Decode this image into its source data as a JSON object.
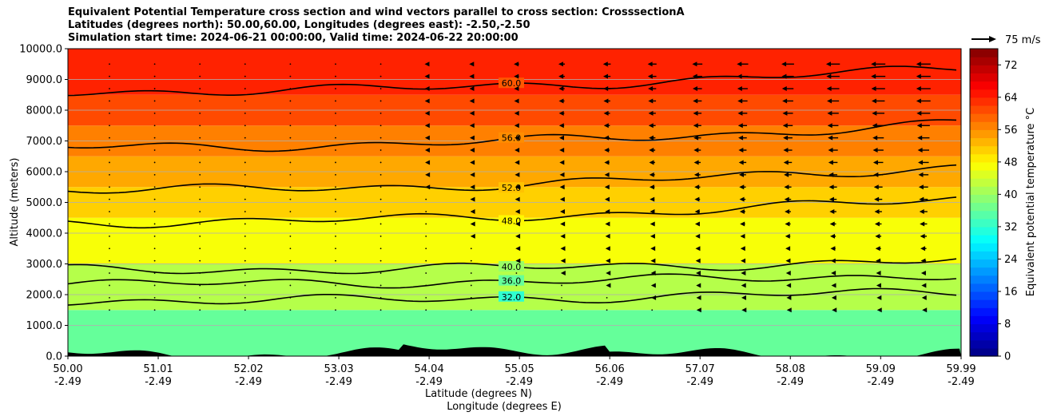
{
  "chart_data": {
    "type": "heatmap",
    "title_lines": [
      "Equivalent Potential Temperature cross section and wind vectors parallel to cross section: CrosssectionA",
      "Latitudes (degrees north): 50.00,60.00, Longitudes (degrees east): -2.50,-2.50",
      "Simulation start time: 2024-06-21 00:00:00, Valid time: 2024-06-22 20:00:00"
    ],
    "ylabel": "Altitude (meters)",
    "xlabel_lines": [
      "Latitude (degrees N)",
      "Longitude (degrees E)"
    ],
    "ylim": [
      0,
      10000
    ],
    "xlim": [
      50.0,
      59.99
    ],
    "yticks": [
      {
        "value": 0,
        "label": "0.0"
      },
      {
        "value": 1000,
        "label": "1000.0"
      },
      {
        "value": 2000,
        "label": "2000.0"
      },
      {
        "value": 3000,
        "label": "3000.0"
      },
      {
        "value": 4000,
        "label": "4000.0"
      },
      {
        "value": 5000,
        "label": "5000.0"
      },
      {
        "value": 6000,
        "label": "6000.0"
      },
      {
        "value": 7000,
        "label": "7000.0"
      },
      {
        "value": 8000,
        "label": "8000.0"
      },
      {
        "value": 9000,
        "label": "9000.0"
      },
      {
        "value": 10000,
        "label": "10000.0"
      }
    ],
    "xticks": [
      {
        "lat": "50.00",
        "lon": "-2.49",
        "value": 50.0
      },
      {
        "lat": "51.01",
        "lon": "-2.49",
        "value": 51.01
      },
      {
        "lat": "52.02",
        "lon": "-2.49",
        "value": 52.02
      },
      {
        "lat": "53.03",
        "lon": "-2.49",
        "value": 53.03
      },
      {
        "lat": "54.04",
        "lon": "-2.49",
        "value": 54.04
      },
      {
        "lat": "55.05",
        "lon": "-2.49",
        "value": 55.05
      },
      {
        "lat": "56.06",
        "lon": "-2.49",
        "value": 56.06
      },
      {
        "lat": "57.07",
        "lon": "-2.49",
        "value": 57.07
      },
      {
        "lat": "58.08",
        "lon": "-2.49",
        "value": 58.08
      },
      {
        "lat": "59.09",
        "lon": "-2.49",
        "value": 59.09
      },
      {
        "lat": "59.99",
        "lon": "-2.49",
        "value": 59.99
      }
    ],
    "colorbar": {
      "label": "Equivalent potential temperature °C",
      "range": [
        0,
        76
      ],
      "ticks": [
        "0",
        "8",
        "16",
        "24",
        "32",
        "40",
        "48",
        "56",
        "64",
        "72"
      ],
      "tick_values": [
        0,
        8,
        16,
        24,
        32,
        40,
        48,
        56,
        64,
        72
      ],
      "colormap": "jet"
    },
    "wind_key": {
      "label": "75 m/s"
    },
    "contours": [
      {
        "level": 32,
        "label": "32.0",
        "altitude_m": 1800
      },
      {
        "level": 36,
        "label": "36.0",
        "altitude_m": 2350
      },
      {
        "level": 40,
        "label": "40.0",
        "altitude_m": 2800
      },
      {
        "level": 48,
        "label": "48.0",
        "altitude_m": 4350
      },
      {
        "level": 52,
        "label": "52.0",
        "altitude_m": 5400
      },
      {
        "level": 56,
        "label": "56.0",
        "altitude_m": 6800
      },
      {
        "level": 60,
        "label": "60.0",
        "altitude_m": 8600
      }
    ],
    "field_bands": [
      {
        "altitude_top_m": 1500,
        "value": 36
      },
      {
        "altitude_top_m": 3000,
        "value": 42
      },
      {
        "altitude_top_m": 4500,
        "value": 47
      },
      {
        "altitude_top_m": 5500,
        "value": 51
      },
      {
        "altitude_top_m": 6500,
        "value": 54
      },
      {
        "altitude_top_m": 7500,
        "value": 57
      },
      {
        "altitude_top_m": 8500,
        "value": 61
      },
      {
        "altitude_top_m": 10000,
        "value": 64
      }
    ]
  }
}
